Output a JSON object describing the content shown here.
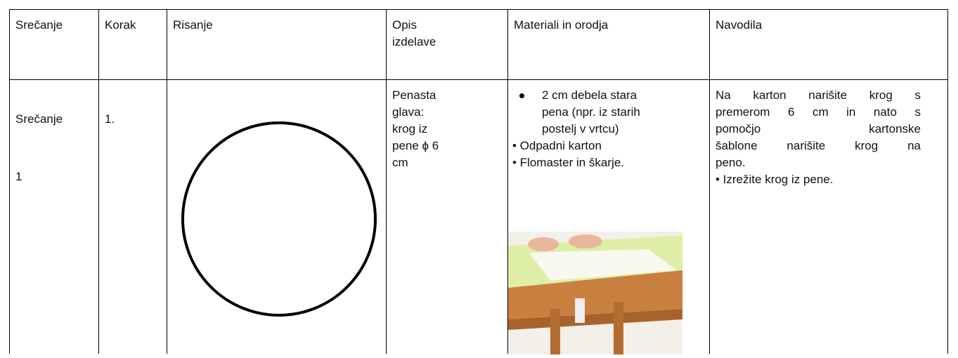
{
  "table": {
    "header": [
      "Srečanje",
      "Korak",
      "Risanje",
      "Opis izdelave",
      "Materiali in orodja",
      "Navodila"
    ],
    "row": {
      "srecanje": [
        "Srečanje",
        "1"
      ],
      "korak": "1.",
      "opis": [
        "Penasta",
        "glava:",
        "krog iz",
        "pene ϕ 6",
        "cm"
      ],
      "materiali": {
        "list_item": [
          "2 cm debela stara",
          "pena (npr. iz starih",
          "postelj v vrtcu)"
        ],
        "lines": [
          "• Odpadni karton",
          "• Flomaster in škarje."
        ]
      },
      "navodila": {
        "paragraph": [
          "Na karton narišite krog s",
          "premerom 6 cm in nato s",
          "pomočjo kartonske",
          "šablone narišite krog na",
          "peno."
        ],
        "bullet": "• Izrežite krog iz pene."
      }
    }
  }
}
